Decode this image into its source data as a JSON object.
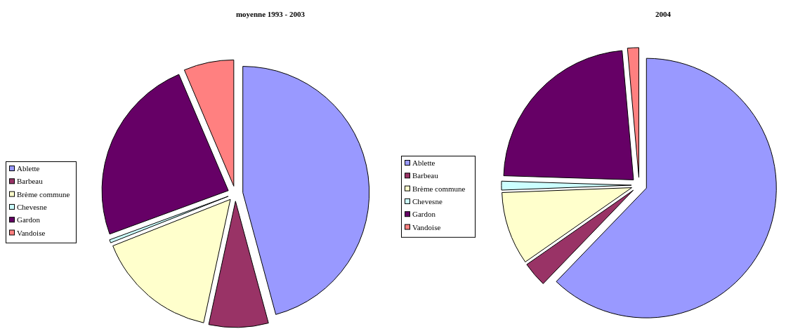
{
  "chart_data": [
    {
      "type": "pie",
      "title": "moyenne 1993 - 2003",
      "categories": [
        "Ablette",
        "Barbeau",
        "Brème commune",
        "Chevesne",
        "Gardon",
        "Vandoise"
      ],
      "values": [
        45.8,
        7.6,
        15.6,
        0.4,
        24.2,
        6.4
      ],
      "colors": [
        "#9999ff",
        "#993366",
        "#ffffcc",
        "#ccffff",
        "#660066",
        "#ff8080"
      ],
      "legend": "left"
    },
    {
      "type": "pie",
      "title": "2004",
      "categories": [
        "Ablette",
        "Barbeau",
        "Brème commune",
        "Chevesne",
        "Gardon",
        "Vandoise"
      ],
      "values": [
        62.2,
        3.1,
        9.1,
        1.1,
        23.1,
        1.4
      ],
      "colors": [
        "#9999ff",
        "#993366",
        "#ffffcc",
        "#ccffff",
        "#660066",
        "#ff8080"
      ],
      "legend": "left"
    }
  ]
}
